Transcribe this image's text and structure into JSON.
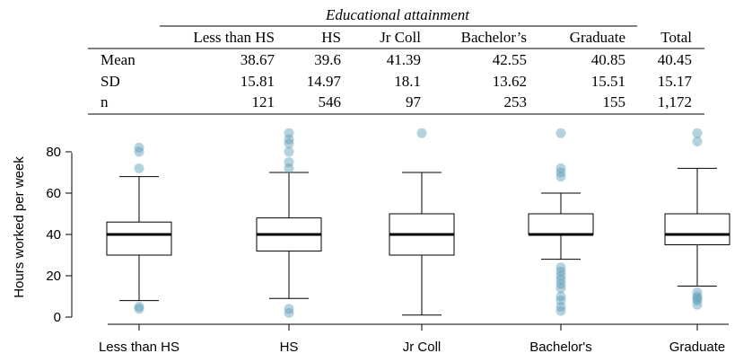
{
  "table": {
    "group_header": "Educational attainment",
    "columns": [
      "Less than HS",
      "HS",
      "Jr Coll",
      "Bachelor’s",
      "Graduate",
      "Total"
    ],
    "rows": [
      {
        "label": "Mean",
        "values": [
          "38.67",
          "39.6",
          "41.39",
          "42.55",
          "40.85",
          "40.45"
        ]
      },
      {
        "label": "SD",
        "values": [
          "15.81",
          "14.97",
          "18.1",
          "13.62",
          "15.51",
          "15.17"
        ]
      },
      {
        "label": "n",
        "values": [
          "121",
          "546",
          "97",
          "253",
          "155",
          "1,172"
        ]
      }
    ]
  },
  "colors": {
    "outlier": "#5b9bb8",
    "median": "#000000",
    "box": "#000000"
  },
  "chart_data": {
    "type": "box",
    "ylabel": "Hours worked per week",
    "ylim": [
      0,
      90
    ],
    "yticks": [
      0,
      20,
      40,
      60,
      80
    ],
    "categories": [
      "Less than HS",
      "HS",
      "Jr Coll",
      "Bachelor's",
      "Graduate"
    ],
    "boxes": [
      {
        "whisker_low": 8,
        "q1": 30,
        "median": 40,
        "q3": 46,
        "whisker_high": 68,
        "outliers": [
          4,
          5,
          72,
          80,
          82
        ]
      },
      {
        "whisker_low": 9,
        "q1": 32,
        "median": 40,
        "q3": 48,
        "whisker_high": 70,
        "outliers": [
          2,
          4,
          72,
          75,
          80,
          84,
          86,
          89
        ]
      },
      {
        "whisker_low": 1,
        "q1": 30,
        "median": 40,
        "q3": 50,
        "whisker_high": 70,
        "outliers": [
          89
        ]
      },
      {
        "whisker_low": 28,
        "q1": 40,
        "median": 40,
        "q3": 50,
        "whisker_high": 60,
        "outliers": [
          3,
          5,
          8,
          10,
          14,
          16,
          18,
          20,
          22,
          24,
          68,
          70,
          72,
          89
        ]
      },
      {
        "whisker_low": 15,
        "q1": 35,
        "median": 40,
        "q3": 50,
        "whisker_high": 72,
        "outliers": [
          6,
          8,
          9,
          10,
          12,
          85,
          89
        ]
      }
    ]
  }
}
